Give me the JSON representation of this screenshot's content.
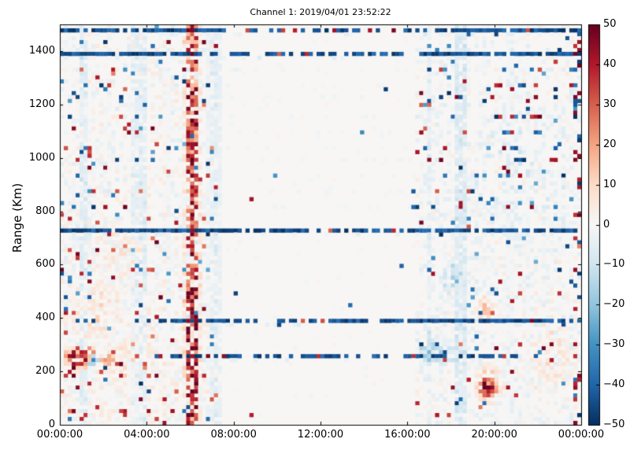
{
  "chart_data": {
    "type": "heatmap",
    "title": "Channel 1: 2019/04/01 23:52:22",
    "x_axis": {
      "label": "",
      "range_hours": [
        0,
        24
      ],
      "ticks": [
        {
          "label": "00:00:00",
          "hours": 0
        },
        {
          "label": "04:00:00",
          "hours": 4
        },
        {
          "label": "08:00:00",
          "hours": 8
        },
        {
          "label": "12:00:00",
          "hours": 12
        },
        {
          "label": "16:00:00",
          "hours": 16
        },
        {
          "label": "20:00:00",
          "hours": 20
        },
        {
          "label": "00:00:00",
          "hours": 24
        }
      ]
    },
    "y_axis": {
      "label": "Range (Km)",
      "range_km": [
        0,
        1500
      ],
      "ticks": [
        {
          "label": "0",
          "km": 0
        },
        {
          "label": "200",
          "km": 200
        },
        {
          "label": "400",
          "km": 400
        },
        {
          "label": "600",
          "km": 600
        },
        {
          "label": "800",
          "km": 800
        },
        {
          "label": "1000",
          "km": 1000
        },
        {
          "label": "1200",
          "km": 1200
        },
        {
          "label": "1400",
          "km": 1400
        }
      ]
    },
    "colorbar": {
      "min": -50,
      "max": 50,
      "ticks": [
        {
          "label": "50",
          "value": 50
        },
        {
          "label": "40",
          "value": 40
        },
        {
          "label": "30",
          "value": 30
        },
        {
          "label": "20",
          "value": 20
        },
        {
          "label": "10",
          "value": 10
        },
        {
          "label": "0",
          "value": 0
        },
        {
          "label": "−10",
          "value": -10
        },
        {
          "label": "−20",
          "value": -20
        },
        {
          "label": "−30",
          "value": -30
        },
        {
          "label": "−40",
          "value": -40
        },
        {
          "label": "−50",
          "value": -50
        }
      ],
      "stops": [
        "#053061",
        "#2166ac",
        "#4393c3",
        "#92c5de",
        "#d1e5f0",
        "#f7f7f7",
        "#fddbc7",
        "#f4a582",
        "#d6604d",
        "#b2182b",
        "#67001f"
      ]
    },
    "grid": {
      "cols": 132,
      "rows": 102
    },
    "features": {
      "background": "#f7f6f4",
      "seed": 20190401,
      "noise": {
        "left_region_end_hour": 7.25,
        "right_region_start_hour": 16.35,
        "left": {
          "p": 0.6,
          "p_high_range": 0.38,
          "amp": 5,
          "warm_bias_below_560km": 1.0
        },
        "right": {
          "p": 0.5,
          "p_high_range": 0.35,
          "amp": 4.5,
          "cool_bias": -0.8
        },
        "middle": {
          "p": 0.05,
          "amp": 2
        },
        "strong_dot_p": {
          "left_low": 0.05,
          "left_high": 0.035,
          "right": 0.028,
          "middle": 0.0018
        }
      },
      "streaks": [
        {
          "r": 1477,
          "t0": 0,
          "t1": 24,
          "dBusy": 0.85,
          "dMid": 0.42,
          "redf": 0.1,
          "sparseBefore": 0
        },
        {
          "r": 1385,
          "t0": 0,
          "t1": 24,
          "dBusy": 0.88,
          "dMid": 0.5,
          "redf": 0.12,
          "sparseBefore": 0
        },
        {
          "r": 727,
          "t0": 0,
          "t1": 24,
          "dBusy": 0.85,
          "dMid": 0.62,
          "redf": 0.07,
          "sparseBefore": 0
        },
        {
          "r": 385,
          "t0": 0,
          "t1": 24,
          "dBusy": 0.8,
          "dMid": 0.62,
          "redf": 0.07,
          "sparseBefore": 4.6
        },
        {
          "r": 262,
          "t0": 4.4,
          "t1": 21,
          "dBusy": 0.7,
          "dMid": 0.5,
          "redf": 0.1,
          "sparseBefore": 0
        }
      ],
      "stripe": {
        "t": 6.09,
        "half_width_h": 0.19,
        "halo_half_width_h": 0.5,
        "p": 0.72,
        "vmin": 12,
        "vmax": 50
      },
      "blue_bands": [
        {
          "t": 1.1,
          "halfw": 0.22,
          "amp": 7
        },
        {
          "t": 3.65,
          "halfw": 0.35,
          "amp": 6
        },
        {
          "t": 7.1,
          "halfw": 0.4,
          "amp": 5
        },
        {
          "t": 17.0,
          "halfw": 0.15,
          "amp": 4
        },
        {
          "t": 18.45,
          "halfw": 0.22,
          "amp": 9
        }
      ],
      "blobs": [
        {
          "t": 1.0,
          "r": 258,
          "tw": 0.8,
          "rh": 40,
          "vmin": 22,
          "vmax": 50,
          "p": 0.65
        },
        {
          "t": 0.75,
          "r": 240,
          "tw": 0.55,
          "rh": 55,
          "vmin": 8,
          "vmax": 25,
          "p": 0.6
        },
        {
          "t": 1.5,
          "r": 252,
          "tw": 0.28,
          "rh": 35,
          "vmin": -35,
          "vmax": -15,
          "p": 0.7
        },
        {
          "t": 2.2,
          "r": 248,
          "tw": 0.45,
          "rh": 30,
          "vmin": 6,
          "vmax": 20,
          "p": 0.55
        },
        {
          "t": 2.9,
          "r": 235,
          "tw": 0.8,
          "rh": 75,
          "vmin": 4,
          "vmax": 14,
          "p": 0.5
        },
        {
          "t": 1.7,
          "r": 430,
          "tw": 1.4,
          "rh": 110,
          "vmin": 3,
          "vmax": 12,
          "p": 0.45
        },
        {
          "t": 2.9,
          "r": 650,
          "tw": 0.9,
          "rh": 95,
          "vmin": 3,
          "vmax": 11,
          "p": 0.45
        },
        {
          "t": 6.0,
          "r": 300,
          "tw": 0.55,
          "rh": 240,
          "vmin": 2,
          "vmax": 8,
          "p": 0.5
        },
        {
          "t": 17.5,
          "r": 265,
          "tw": 1.0,
          "rh": 45,
          "vmin": -20,
          "vmax": -6,
          "p": 0.6
        },
        {
          "t": 16.9,
          "r": 300,
          "tw": 0.5,
          "rh": 60,
          "vmin": -14,
          "vmax": -4,
          "p": 0.5
        },
        {
          "t": 18.05,
          "r": 545,
          "tw": 0.45,
          "rh": 70,
          "vmin": -18,
          "vmax": -6,
          "p": 0.5
        },
        {
          "t": 19.7,
          "r": 140,
          "tw": 0.42,
          "rh": 42,
          "vmin": 28,
          "vmax": 50,
          "p": 0.85
        },
        {
          "t": 19.75,
          "r": 150,
          "tw": 0.75,
          "rh": 80,
          "vmin": 8,
          "vmax": 20,
          "p": 0.55
        },
        {
          "t": 19.55,
          "r": 435,
          "tw": 0.4,
          "rh": 50,
          "vmin": 7,
          "vmax": 20,
          "p": 0.7
        },
        {
          "t": 21.3,
          "r": 950,
          "tw": 2.5,
          "rh": 300,
          "vmin": -8,
          "vmax": -2,
          "p": 0.25
        },
        {
          "t": 22.6,
          "r": 250,
          "tw": 1.2,
          "rh": 150,
          "vmin": 3,
          "vmax": 10,
          "p": 0.35
        }
      ],
      "dot_rows": {
        "ranges_km": [
          1330,
          1275,
          1230,
          1150,
          1100,
          1040,
          1000,
          940,
          875,
          820
        ],
        "p": 0.16
      },
      "right_edge": {
        "start_hour": 23.7,
        "p": 0.2
      }
    }
  }
}
